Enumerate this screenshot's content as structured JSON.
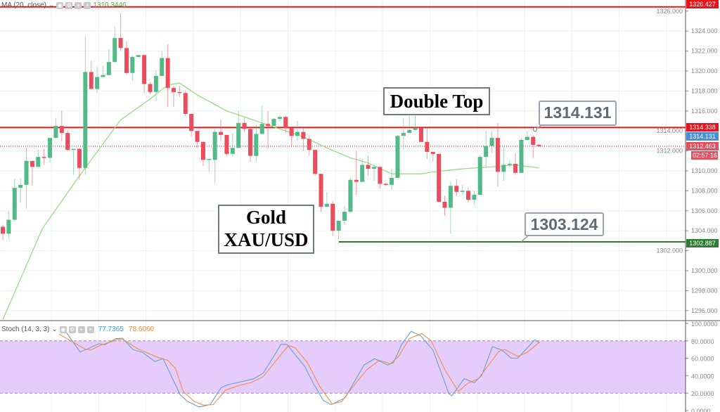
{
  "indicators": {
    "ma_legend": "MA (20, close)",
    "ma_value": "1310.3446",
    "stoch_legend": "Stoch (14, 3, 3)",
    "stoch_k_value": "77.7365",
    "stoch_d_value": "78.6060"
  },
  "annotations": {
    "double_top": "Double Top",
    "gold_line1": "Gold",
    "gold_line2": "XAU/USD",
    "callout_high": "1314.131",
    "callout_low": "1303.124"
  },
  "price_tags": {
    "top_level": "1326.427",
    "resistance": "1314.338",
    "high_mark": "1314.131",
    "last_price": "1312.463",
    "countdown": "02:57:16",
    "support": "1302.887"
  },
  "colors": {
    "up": "#53b987",
    "down": "#eb4d5c",
    "ma": "#8fdc7a",
    "stoch_k": "#5b9bd5",
    "stoch_d": "#f0883e",
    "resistance": "#e8141c",
    "support": "#2e7d32",
    "stoch_band": "#e6ccfa"
  },
  "chart_data": [
    {
      "type": "candlestick",
      "title": "Gold XAU/USD",
      "ylim": [
        1294.6,
        1327.1
      ],
      "yticks": [
        "1326.000",
        "1324.000",
        "1322.000",
        "1320.000",
        "1318.000",
        "1316.000",
        "1314.000",
        "1312.000",
        "1310.000",
        "1308.000",
        "1306.000",
        "1304.000",
        "1302.000",
        "1300.000",
        "1298.000",
        "1296.000"
      ],
      "candles_ohlc": [
        [
          1304.4,
          1304.6,
          1303.1,
          1303.7
        ],
        [
          1303.7,
          1306.0,
          1303.2,
          1305.1
        ],
        [
          1305.1,
          1309.2,
          1304.9,
          1308.3
        ],
        [
          1308.3,
          1309.3,
          1306.8,
          1308.6
        ],
        [
          1308.6,
          1312.3,
          1306.2,
          1311.0
        ],
        [
          1311.0,
          1311.0,
          1308.5,
          1310.4
        ],
        [
          1310.4,
          1312.1,
          1310.4,
          1311.4
        ],
        [
          1311.4,
          1312.2,
          1310.6,
          1311.3
        ],
        [
          1311.3,
          1313.3,
          1310.8,
          1313.3
        ],
        [
          1313.3,
          1315.3,
          1313.3,
          1314.5
        ],
        [
          1314.5,
          1316.0,
          1313.0,
          1313.8
        ],
        [
          1313.8,
          1314.1,
          1312.0,
          1312.1
        ],
        [
          1312.1,
          1312.2,
          1309.6,
          1312.2
        ],
        [
          1312.2,
          1312.3,
          1309.1,
          1310.3
        ],
        [
          1310.3,
          1323.5,
          1309.6,
          1319.9
        ],
        [
          1319.9,
          1321.0,
          1318.2,
          1318.2
        ],
        [
          1318.2,
          1320.4,
          1317.8,
          1319.4
        ],
        [
          1319.4,
          1320.5,
          1319.4,
          1319.6
        ],
        [
          1319.6,
          1322.2,
          1319.6,
          1320.9
        ],
        [
          1320.9,
          1324.5,
          1320.9,
          1323.3
        ],
        [
          1323.3,
          1325.8,
          1322.0,
          1322.3
        ],
        [
          1322.3,
          1323.0,
          1319.6,
          1319.8
        ],
        [
          1319.8,
          1321.6,
          1319.0,
          1321.4
        ],
        [
          1321.4,
          1321.6,
          1321.4,
          1321.6
        ],
        [
          1321.6,
          1321.6,
          1317.8,
          1318.7
        ],
        [
          1318.7,
          1318.9,
          1317.7,
          1317.9
        ],
        [
          1317.9,
          1320.1,
          1317.0,
          1319.5
        ],
        [
          1319.5,
          1322.0,
          1319.5,
          1321.3
        ],
        [
          1321.3,
          1322.7,
          1316.4,
          1318.3
        ],
        [
          1318.3,
          1318.5,
          1316.4,
          1317.9
        ],
        [
          1317.9,
          1318.5,
          1317.4,
          1317.8
        ],
        [
          1317.8,
          1318.0,
          1315.5,
          1315.7
        ],
        [
          1315.7,
          1315.7,
          1313.4,
          1314.0
        ],
        [
          1314.0,
          1314.0,
          1312.3,
          1312.9
        ],
        [
          1312.9,
          1312.9,
          1310.5,
          1311.1
        ],
        [
          1311.1,
          1311.2,
          1309.9,
          1311.2
        ],
        [
          1311.1,
          1314.2,
          1308.7,
          1313.9
        ],
        [
          1313.9,
          1315.1,
          1313.0,
          1313.6
        ],
        [
          1313.6,
          1313.6,
          1311.5,
          1311.7
        ],
        [
          1311.7,
          1313.8,
          1311.4,
          1312.3
        ],
        [
          1312.3,
          1316.0,
          1312.3,
          1314.8
        ],
        [
          1314.8,
          1315.3,
          1313.9,
          1314.2
        ],
        [
          1314.2,
          1314.3,
          1310.9,
          1311.5
        ],
        [
          1311.5,
          1314.6,
          1310.9,
          1313.7
        ],
        [
          1313.7,
          1316.5,
          1313.7,
          1314.7
        ],
        [
          1314.7,
          1316.0,
          1312.2,
          1314.5
        ],
        [
          1314.5,
          1315.3,
          1314.5,
          1315.2
        ],
        [
          1315.2,
          1315.6,
          1315.0,
          1315.4
        ],
        [
          1315.4,
          1315.5,
          1313.8,
          1314.3
        ],
        [
          1314.3,
          1314.3,
          1312.4,
          1313.5
        ],
        [
          1313.5,
          1315.0,
          1313.0,
          1313.9
        ],
        [
          1313.9,
          1314.3,
          1312.0,
          1313.2
        ],
        [
          1313.2,
          1313.6,
          1311.5,
          1312.1
        ],
        [
          1312.1,
          1312.1,
          1309.5,
          1309.7
        ],
        [
          1309.7,
          1309.7,
          1305.9,
          1306.4
        ],
        [
          1306.4,
          1307.9,
          1306.4,
          1306.7
        ],
        [
          1306.7,
          1307.0,
          1303.5,
          1304.0
        ],
        [
          1304.0,
          1305.0,
          1303.124,
          1305.0
        ],
        [
          1305.0,
          1306.5,
          1304.6,
          1305.9
        ],
        [
          1305.9,
          1309.3,
          1305.8,
          1309.1
        ],
        [
          1309.1,
          1312.0,
          1307.6,
          1308.9
        ],
        [
          1308.9,
          1311.2,
          1308.9,
          1310.6
        ],
        [
          1310.6,
          1311.5,
          1309.5,
          1310.2
        ],
        [
          1310.2,
          1310.6,
          1309.0,
          1310.4
        ],
        [
          1310.4,
          1310.4,
          1308.2,
          1308.7
        ],
        [
          1308.7,
          1308.8,
          1308.5,
          1308.6
        ],
        [
          1308.6,
          1310.2,
          1308.1,
          1309.3
        ],
        [
          1309.3,
          1313.6,
          1309.3,
          1313.5
        ],
        [
          1313.5,
          1315.3,
          1312.1,
          1313.8
        ],
        [
          1313.8,
          1315.5,
          1313.8,
          1314.1
        ],
        [
          1314.1,
          1315.5,
          1314.0,
          1314.25
        ],
        [
          1314.3,
          1314.3,
          1312.9,
          1312.9
        ],
        [
          1312.9,
          1314.3,
          1311.2,
          1311.9
        ],
        [
          1311.9,
          1311.9,
          1310.9,
          1311.7
        ],
        [
          1311.7,
          1311.7,
          1306.9,
          1306.9
        ],
        [
          1306.9,
          1307.5,
          1305.5,
          1306.3
        ],
        [
          1306.3,
          1308.9,
          1303.7,
          1308.5
        ],
        [
          1308.5,
          1309.2,
          1307.5,
          1307.9
        ],
        [
          1307.9,
          1308.6,
          1307.6,
          1308.0
        ],
        [
          1308.0,
          1308.3,
          1306.8,
          1307.1
        ],
        [
          1307.1,
          1308.0,
          1306.6,
          1307.6
        ],
        [
          1307.6,
          1311.6,
          1307.6,
          1311.4
        ],
        [
          1311.4,
          1314.0,
          1310.3,
          1312.5
        ],
        [
          1312.5,
          1314.0,
          1311.8,
          1313.3
        ],
        [
          1313.3,
          1314.8,
          1308.4,
          1309.9
        ],
        [
          1309.9,
          1312.5,
          1309.0,
          1310.6
        ],
        [
          1310.6,
          1311.0,
          1310.4,
          1310.7
        ],
        [
          1310.7,
          1311.8,
          1309.6,
          1309.8
        ],
        [
          1309.8,
          1313.3,
          1309.8,
          1313.1
        ],
        [
          1313.1,
          1314.0,
          1313.0,
          1313.4
        ],
        [
          1313.4,
          1313.6,
          1311.3,
          1312.6
        ],
        [
          1312.6,
          1312.7,
          1312.4,
          1312.463
        ]
      ],
      "ma20_points": [
        [
          0,
          1295.1
        ],
        [
          6.7,
          1304.2
        ],
        [
          13,
          1309.5
        ],
        [
          20,
          1315.1
        ],
        [
          25,
          1317.2
        ],
        [
          28,
          1318.6
        ],
        [
          30,
          1318.8
        ],
        [
          33,
          1317.6
        ],
        [
          38,
          1316.0
        ],
        [
          45,
          1314.6
        ],
        [
          51,
          1313.4
        ],
        [
          55,
          1312.3
        ],
        [
          59,
          1311.3
        ],
        [
          62,
          1310.8
        ],
        [
          66,
          1309.7
        ],
        [
          71,
          1309.7
        ],
        [
          73,
          1309.9
        ],
        [
          78,
          1310.2
        ],
        [
          83,
          1310.4
        ],
        [
          87,
          1310.6
        ],
        [
          91,
          1310.3
        ]
      ],
      "levels": [
        {
          "name": "top-level",
          "price": 1326.427,
          "style": "solid"
        },
        {
          "name": "resistance",
          "price": 1314.338,
          "style": "solid"
        },
        {
          "name": "last-price",
          "price": 1312.463,
          "style": "dotted"
        },
        {
          "name": "support",
          "price": 1302.887,
          "style": "solid",
          "from_index": 57
        }
      ]
    },
    {
      "type": "line",
      "title": "Stoch (14, 3, 3)",
      "ylim": [
        0,
        100
      ],
      "band": [
        20,
        80
      ],
      "yticks": [
        "100.0000",
        "80.0000",
        "60.0000",
        "40.0000",
        "20.0000",
        "0.0000"
      ],
      "series": [
        {
          "name": "%K",
          "points": [
            [
              10.7,
              90.5
            ],
            [
              13.1,
              67.3
            ],
            [
              14.4,
              70.8
            ],
            [
              16.3,
              76.8
            ],
            [
              17.3,
              75.5
            ],
            [
              19.2,
              82.6
            ],
            [
              20.3,
              83.1
            ],
            [
              22.1,
              70
            ],
            [
              23.7,
              66.8
            ],
            [
              25.8,
              56.3
            ],
            [
              27.2,
              59.5
            ],
            [
              30.1,
              18.2
            ],
            [
              31.4,
              10.3
            ],
            [
              33.3,
              4.2
            ],
            [
              35.2,
              6.8
            ],
            [
              37.0,
              26
            ],
            [
              38.1,
              29.5
            ],
            [
              41.0,
              34
            ],
            [
              42.6,
              36.6
            ],
            [
              44.2,
              43
            ],
            [
              46.4,
              66.8
            ],
            [
              47.2,
              76
            ],
            [
              48.2,
              76
            ],
            [
              51.2,
              51
            ],
            [
              52.8,
              30
            ],
            [
              54.4,
              11.6
            ],
            [
              55.7,
              6.8
            ],
            [
              58.1,
              14.7
            ],
            [
              61.3,
              52.3
            ],
            [
              63.1,
              59.5
            ],
            [
              65.3,
              52.3
            ],
            [
              66.3,
              55
            ],
            [
              67.7,
              76
            ],
            [
              69.3,
              91
            ],
            [
              70.9,
              85.8
            ],
            [
              73.0,
              69.4
            ],
            [
              75.7,
              19.5
            ],
            [
              76.2,
              16.8
            ],
            [
              78.3,
              36.6
            ],
            [
              80.0,
              32
            ],
            [
              81.3,
              40.5
            ],
            [
              83.1,
              73.4
            ],
            [
              84.7,
              69.4
            ],
            [
              86.3,
              60.2
            ],
            [
              87.4,
              60.2
            ],
            [
              90.3,
              81.3
            ],
            [
              91.1,
              77.7365
            ]
          ]
        },
        {
          "name": "%D",
          "points": [
            [
              9.5,
              88
            ],
            [
              13.9,
              70.8
            ],
            [
              14.9,
              69.4
            ],
            [
              16.5,
              74.7
            ],
            [
              19.7,
              82
            ],
            [
              20.5,
              81.3
            ],
            [
              22.9,
              70.8
            ],
            [
              26.1,
              61.6
            ],
            [
              28.0,
              57.6
            ],
            [
              29.3,
              48.4
            ],
            [
              30.6,
              22
            ],
            [
              32.5,
              10.3
            ],
            [
              34.1,
              6.3
            ],
            [
              35.7,
              6.8
            ],
            [
              37.8,
              23.4
            ],
            [
              40.0,
              28.7
            ],
            [
              42.1,
              32
            ],
            [
              44.2,
              39
            ],
            [
              46.4,
              57.6
            ],
            [
              48.5,
              74.7
            ],
            [
              49.6,
              72
            ],
            [
              51.7,
              55
            ],
            [
              53.8,
              27.4
            ],
            [
              55.9,
              7.6
            ],
            [
              57.5,
              10.3
            ],
            [
              59.1,
              24.7
            ],
            [
              61.8,
              47.1
            ],
            [
              63.9,
              57.6
            ],
            [
              65.8,
              53.7
            ],
            [
              67.1,
              61.6
            ],
            [
              69.0,
              82.6
            ],
            [
              71.1,
              88.4
            ],
            [
              72.7,
              80
            ],
            [
              75.1,
              45.8
            ],
            [
              77.3,
              22
            ],
            [
              78.9,
              31.3
            ],
            [
              80.7,
              36.6
            ],
            [
              82.6,
              53.7
            ],
            [
              84.2,
              68.1
            ],
            [
              85.2,
              70
            ],
            [
              87.4,
              62.1
            ],
            [
              89.0,
              66.8
            ],
            [
              91.1,
              78.606
            ]
          ]
        }
      ]
    }
  ]
}
